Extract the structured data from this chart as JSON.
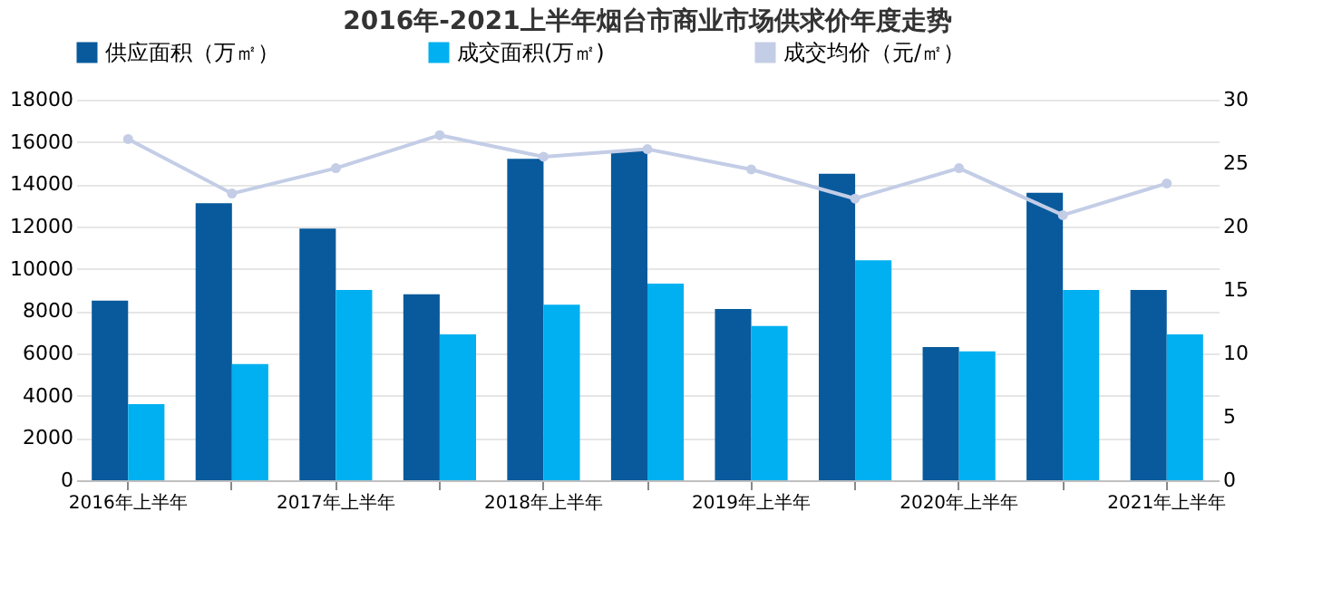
{
  "chart_data": {
    "type": "bar",
    "title": "2016年-2021上半年烟台市商业市场供求价年度走势",
    "categories": [
      "2016年上半年",
      null,
      "2017年上半年",
      null,
      "2018年上半年",
      null,
      "2019年上半年",
      null,
      "2020年上半年",
      null,
      "2021年上半年"
    ],
    "series": [
      {
        "name": "供应面积（万㎡）",
        "color": "#085a9c",
        "values": [
          8500,
          13100,
          11900,
          8800,
          15200,
          15600,
          8100,
          14500,
          6300,
          13600,
          9000
        ]
      },
      {
        "name": "成交面积(万㎡)",
        "color": "#00b0f0",
        "values": [
          3600,
          5500,
          9000,
          6900,
          8300,
          9300,
          7300,
          10400,
          6100,
          9000,
          6900
        ]
      },
      {
        "name": "成交均价（元/㎡）",
        "color": "#c3cde6",
        "type": "line",
        "axis": "y2",
        "values": [
          26.9,
          22.6,
          24.6,
          27.2,
          25.5,
          26.1,
          24.5,
          22.2,
          24.6,
          20.9,
          23.4
        ]
      }
    ],
    "ylim": [
      0,
      18000
    ],
    "yticks": [
      0,
      2000,
      4000,
      6000,
      8000,
      10000,
      12000,
      14000,
      16000,
      18000
    ],
    "y2lim": [
      0,
      30
    ],
    "y2ticks": [
      0,
      5,
      10,
      15,
      20,
      25,
      30
    ],
    "grid": "y",
    "legend": "top",
    "marker": "circle"
  }
}
